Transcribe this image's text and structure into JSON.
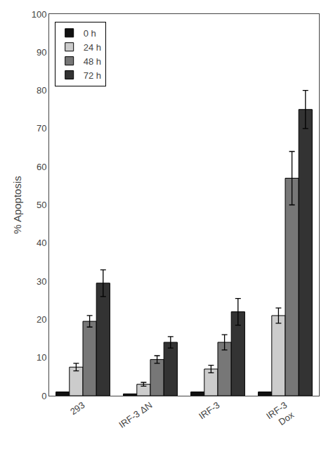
{
  "chart_data": {
    "type": "bar",
    "ylabel": "% Apoptosis",
    "categories": [
      "293",
      "IRF-3 ΔN",
      "IRF-3",
      "IRF-3\nDox"
    ],
    "series": [
      {
        "name": "0 h",
        "color": "#111111",
        "values": [
          1.0,
          0.5,
          1.0,
          1.0
        ],
        "errors": [
          0.0,
          0.0,
          0.0,
          0.0
        ]
      },
      {
        "name": "24 h",
        "color": "#cccccc",
        "values": [
          7.5,
          3.0,
          7.0,
          21.0
        ],
        "errors": [
          1.0,
          0.5,
          1.0,
          2.0
        ]
      },
      {
        "name": "48 h",
        "color": "#777777",
        "values": [
          19.5,
          9.5,
          14.0,
          57.0
        ],
        "errors": [
          1.5,
          1.0,
          2.0,
          7.0
        ]
      },
      {
        "name": "72 h",
        "color": "#333333",
        "values": [
          29.5,
          14.0,
          22.0,
          75.0
        ],
        "errors": [
          3.5,
          1.5,
          3.5,
          5.0
        ]
      }
    ],
    "ylim": [
      0,
      100
    ],
    "yticks": [
      0,
      10,
      20,
      30,
      40,
      50,
      60,
      70,
      80,
      90,
      100
    ],
    "grid": false,
    "legend": "upper left"
  }
}
